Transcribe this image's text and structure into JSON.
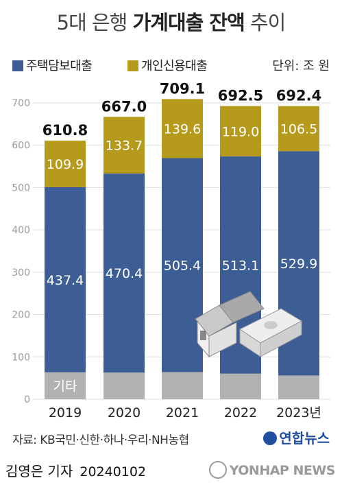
{
  "title_regular_1": "5대 은행 ",
  "title_bold": "가계대출 잔액",
  "title_regular_2": " 추이",
  "unit": "단위: 조 원",
  "source": "자료: KB국민·신한·하나·우리·NH농협",
  "brand": "연합뉴스",
  "byline": "김영은 기자",
  "date": "20240102",
  "watermark": "YONHAP NEWS",
  "colors": {
    "mortgage": "#3d5e94",
    "personal": "#b59a1c",
    "other": "#b2b2b2",
    "grid": "#dedede"
  },
  "chart_data": {
    "type": "bar",
    "stacked": true,
    "categories": [
      "2019",
      "2020",
      "2021",
      "2022",
      "2023년"
    ],
    "series": [
      {
        "name": "기타",
        "values": [
          63.5,
          62.9,
          64.1,
          60.4,
          56.0
        ],
        "label_shown": [
          true,
          false,
          false,
          false,
          false
        ]
      },
      {
        "name": "주택담보대출",
        "values": [
          437.4,
          470.4,
          505.4,
          513.1,
          529.9
        ]
      },
      {
        "name": "개인신용대출",
        "values": [
          109.9,
          133.7,
          139.6,
          119.0,
          106.5
        ]
      }
    ],
    "totals": [
      610.8,
      667.0,
      709.1,
      692.5,
      692.4
    ],
    "yticks": [
      0,
      100,
      200,
      300,
      400,
      500,
      600,
      700
    ],
    "ylim": [
      0,
      700
    ],
    "grid": true,
    "legend": "top-left"
  }
}
